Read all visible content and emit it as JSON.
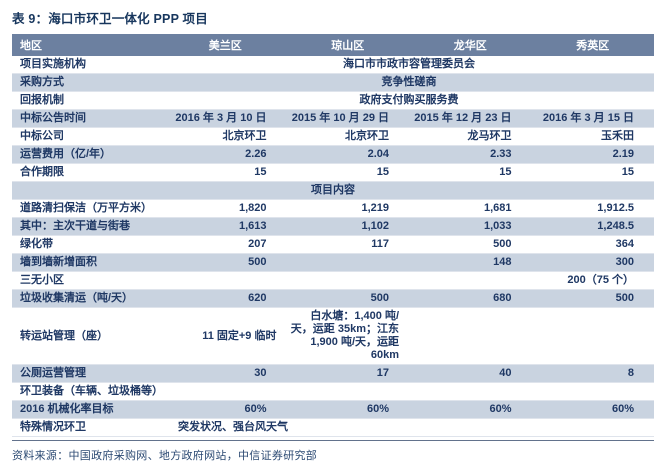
{
  "page": {
    "title": "表 9：海口市环卫一体化 PPP 项目",
    "source": "资料来源：中国政府采购网、地方政府网站，中信证券研究部"
  },
  "colors": {
    "header_bg": "#6c80a0",
    "header_text": "#ffffff",
    "row_shaded_bg": "#c9d3e0",
    "text": "#1f3864",
    "title_text": "#17365d",
    "divider": "#62728c",
    "source_text": "#2c4a73"
  },
  "table": {
    "columns": [
      "地区",
      "美兰区",
      "琼山区",
      "龙华区",
      "秀英区"
    ],
    "rows": [
      {
        "label": "项目实施机构",
        "span": "center",
        "value": "海口市市政市容管理委员会"
      },
      {
        "label": "采购方式",
        "span": "center",
        "value": "竞争性磋商"
      },
      {
        "label": "回报机制",
        "span": "center",
        "value": "政府支付购买服务费"
      },
      {
        "label": "中标公告时间",
        "values": [
          "2016 年 3 月 10 日",
          "2015 年 10 月 29 日",
          "2015 年 12 月 23 日",
          "2016 年 3 月 15 日"
        ]
      },
      {
        "label": "中标公司",
        "values": [
          "北京环卫",
          "北京环卫",
          "龙马环卫",
          "玉禾田"
        ]
      },
      {
        "label": "运营费用（亿/年）",
        "values": [
          "2.26",
          "2.04",
          "2.33",
          "2.19"
        ]
      },
      {
        "label": "合作期限",
        "values": [
          "15",
          "15",
          "15",
          "15"
        ]
      },
      {
        "section": "项目内容"
      },
      {
        "label": "道路清扫保洁（万平方米）",
        "values": [
          "1,820",
          "1,219",
          "1,681",
          "1,912.5"
        ]
      },
      {
        "label": "其中：主次干道与街巷",
        "values": [
          "1,613",
          "1,102",
          "1,033",
          "1,248.5"
        ]
      },
      {
        "label": "绿化带",
        "values": [
          "207",
          "117",
          "500",
          "364"
        ]
      },
      {
        "label": "墙到墙新增面积",
        "values": [
          "500",
          "",
          "148",
          "300"
        ]
      },
      {
        "label": "三无小区",
        "values": [
          "",
          "",
          "",
          "200（75 个）"
        ]
      },
      {
        "label": "垃圾收集清运（吨/天）",
        "values": [
          "620",
          "500",
          "680",
          "500"
        ]
      },
      {
        "label": "转运站管理（座）",
        "wrap": true,
        "values": [
          "11 固定+9 临时",
          "白水塘：1,400 吨/天，运距 35km；江东 1,900 吨/天，运距 60km",
          "",
          ""
        ]
      },
      {
        "label": "公厕运营管理",
        "values": [
          "30",
          "17",
          "40",
          "8"
        ]
      },
      {
        "label": "环卫装备（车辆、垃圾桶等）",
        "values": [
          "",
          "",
          "",
          ""
        ]
      },
      {
        "label": "2016 机械化率目标",
        "values": [
          "60%",
          "60%",
          "60%",
          "60%"
        ]
      },
      {
        "label": "特殊情况环卫",
        "span": "left",
        "value": "突发状况、强台风天气"
      }
    ]
  }
}
